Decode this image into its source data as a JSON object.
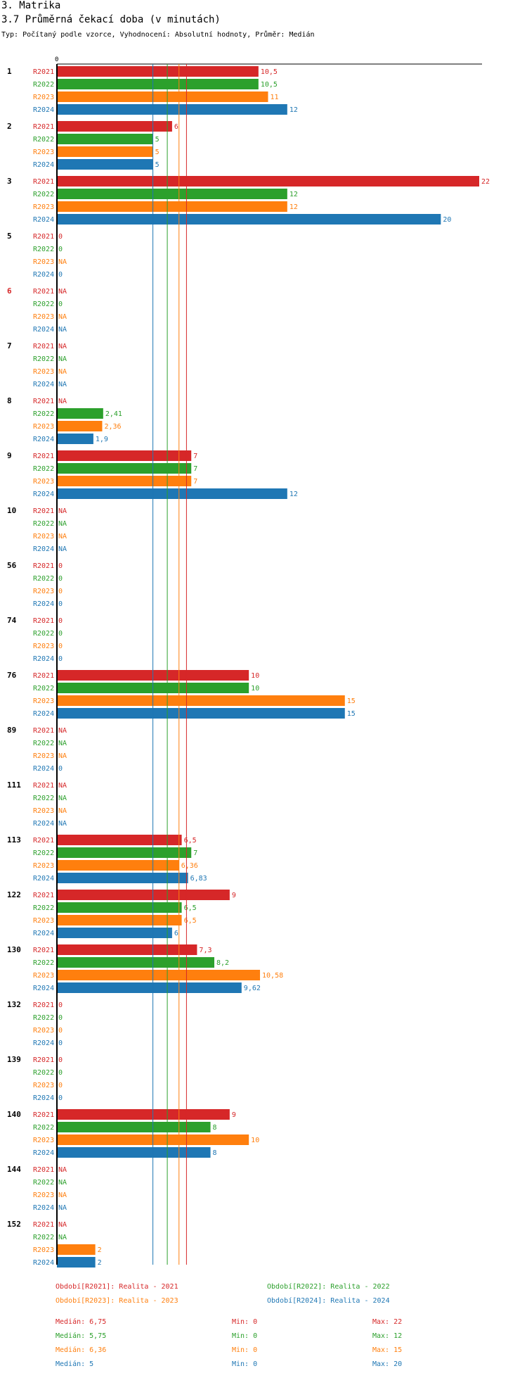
{
  "header": {
    "section": "3. Matrika",
    "title": "3.7 Průměrná čekací doba (v minutách)",
    "subtitle": "Typ: Počítaný podle vzorce, Vyhodnocení: Absolutní hodnoty, Průměr: Medián"
  },
  "colors": {
    "R2021": "#d62728",
    "R2022": "#2ca02c",
    "R2023": "#ff7f0e",
    "R2024": "#1f77b4",
    "highlight": "#d62728"
  },
  "chart_data": {
    "type": "bar",
    "orientation": "horizontal",
    "axis_zero_label": "0",
    "xlim": [
      0,
      22
    ],
    "periods": [
      "R2021",
      "R2022",
      "R2023",
      "R2024"
    ],
    "groups": [
      {
        "id": "1",
        "highlight": false,
        "values": [
          10.5,
          10.5,
          11,
          12
        ],
        "labels": [
          "10,5",
          "10,5",
          "11",
          "12"
        ]
      },
      {
        "id": "2",
        "highlight": false,
        "values": [
          6,
          5,
          5,
          5
        ],
        "labels": [
          "6",
          "5",
          "5",
          "5"
        ]
      },
      {
        "id": "3",
        "highlight": false,
        "values": [
          22,
          12,
          12,
          20
        ],
        "labels": [
          "22",
          "12",
          "12",
          "20"
        ]
      },
      {
        "id": "5",
        "highlight": false,
        "values": [
          0,
          0,
          null,
          0
        ],
        "labels": [
          "0",
          "0",
          "NA",
          "0"
        ]
      },
      {
        "id": "6",
        "highlight": true,
        "values": [
          null,
          0,
          null,
          null
        ],
        "labels": [
          "NA",
          "0",
          "NA",
          "NA"
        ]
      },
      {
        "id": "7",
        "highlight": false,
        "values": [
          null,
          null,
          null,
          null
        ],
        "labels": [
          "NA",
          "NA",
          "NA",
          "NA"
        ]
      },
      {
        "id": "8",
        "highlight": false,
        "values": [
          null,
          2.41,
          2.36,
          1.9
        ],
        "labels": [
          "NA",
          "2,41",
          "2,36",
          "1,9"
        ]
      },
      {
        "id": "9",
        "highlight": false,
        "values": [
          7,
          7,
          7,
          12
        ],
        "labels": [
          "7",
          "7",
          "7",
          "12"
        ]
      },
      {
        "id": "10",
        "highlight": false,
        "values": [
          null,
          null,
          null,
          null
        ],
        "labels": [
          "NA",
          "NA",
          "NA",
          "NA"
        ]
      },
      {
        "id": "56",
        "highlight": false,
        "values": [
          0,
          0,
          0,
          0
        ],
        "labels": [
          "0",
          "0",
          "0",
          "0"
        ]
      },
      {
        "id": "74",
        "highlight": false,
        "values": [
          0,
          0,
          0,
          0
        ],
        "labels": [
          "0",
          "0",
          "0",
          "0"
        ]
      },
      {
        "id": "76",
        "highlight": false,
        "values": [
          10,
          10,
          15,
          15
        ],
        "labels": [
          "10",
          "10",
          "15",
          "15"
        ]
      },
      {
        "id": "89",
        "highlight": false,
        "values": [
          null,
          null,
          null,
          0
        ],
        "labels": [
          "NA",
          "NA",
          "NA",
          "0"
        ]
      },
      {
        "id": "111",
        "highlight": false,
        "values": [
          null,
          null,
          null,
          null
        ],
        "labels": [
          "NA",
          "NA",
          "NA",
          "NA"
        ]
      },
      {
        "id": "113",
        "highlight": false,
        "values": [
          6.5,
          7,
          6.36,
          6.83
        ],
        "labels": [
          "6,5",
          "7",
          "6,36",
          "6,83"
        ]
      },
      {
        "id": "122",
        "highlight": false,
        "values": [
          9,
          6.5,
          6.5,
          6
        ],
        "labels": [
          "9",
          "6,5",
          "6,5",
          "6"
        ]
      },
      {
        "id": "130",
        "highlight": false,
        "values": [
          7.3,
          8.2,
          10.58,
          9.62
        ],
        "labels": [
          "7,3",
          "8,2",
          "10,58",
          "9,62"
        ]
      },
      {
        "id": "132",
        "highlight": false,
        "values": [
          0,
          0,
          0,
          0
        ],
        "labels": [
          "0",
          "0",
          "0",
          "0"
        ]
      },
      {
        "id": "139",
        "highlight": false,
        "values": [
          0,
          0,
          0,
          0
        ],
        "labels": [
          "0",
          "0",
          "0",
          "0"
        ]
      },
      {
        "id": "140",
        "highlight": false,
        "values": [
          9,
          8,
          10,
          8
        ],
        "labels": [
          "9",
          "8",
          "10",
          "8"
        ]
      },
      {
        "id": "144",
        "highlight": false,
        "values": [
          null,
          null,
          null,
          null
        ],
        "labels": [
          "NA",
          "NA",
          "NA",
          "NA"
        ]
      },
      {
        "id": "152",
        "highlight": false,
        "values": [
          null,
          null,
          2,
          2
        ],
        "labels": [
          "NA",
          "NA",
          "2",
          "2"
        ]
      }
    ],
    "median_lines": [
      6.75,
      5.75,
      6.36,
      5
    ],
    "legend": [
      {
        "period": "R2021",
        "label": "Období[R2021]: Realita - 2021"
      },
      {
        "period": "R2022",
        "label": "Období[R2022]: Realita - 2022"
      },
      {
        "period": "R2023",
        "label": "Období[R2023]: Realita - 2023"
      },
      {
        "period": "R2024",
        "label": "Období[R2024]: Realita - 2024"
      }
    ],
    "stats": [
      {
        "period": "R2021",
        "median": "Medián: 6,75",
        "min": "Min: 0",
        "max": "Max: 22"
      },
      {
        "period": "R2022",
        "median": "Medián: 5,75",
        "min": "Min: 0",
        "max": "Max: 12"
      },
      {
        "period": "R2023",
        "median": "Medián: 6,36",
        "min": "Min: 0",
        "max": "Max: 15"
      },
      {
        "period": "R2024",
        "median": "Medián: 5",
        "min": "Min: 0",
        "max": "Max: 20"
      }
    ]
  }
}
